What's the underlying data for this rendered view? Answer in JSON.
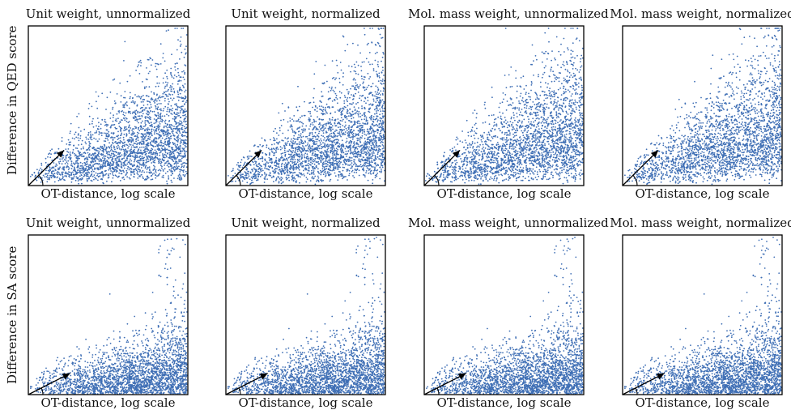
{
  "figure": {
    "row_labels": [
      "Difference in QED score",
      "Difference in SA score"
    ],
    "xlabel": "OT-distance, log scale",
    "col_titles": [
      "Unit weight, unnormalized",
      "Unit weight, normalized",
      "Mol. mass weight, unnormalized",
      "Mol. mass weight, normalized"
    ],
    "point_color": "#3f6fb5"
  },
  "chart_data": [
    {
      "type": "scatter",
      "row": 0,
      "col": 0,
      "title": "Unit weight, unnormalized",
      "xlabel": "OT-distance, log scale",
      "ylabel": "Difference in QED score",
      "grid": false,
      "arrow_annotation": true,
      "point_count_approx": 4000,
      "distribution": "spreads upward with increasing x; dense at high x",
      "x": [
        0.55,
        0.6,
        0.65,
        0.7,
        0.75,
        0.8,
        0.85,
        0.9,
        0.95,
        0.98,
        0.45,
        0.35,
        0.25,
        0.15,
        0.92
      ],
      "y": [
        0.1,
        0.45,
        0.3,
        0.55,
        0.2,
        0.6,
        0.4,
        0.7,
        0.35,
        0.75,
        0.35,
        0.25,
        0.2,
        0.1,
        0.8
      ]
    },
    {
      "type": "scatter",
      "row": 0,
      "col": 1,
      "title": "Unit weight, normalized",
      "xlabel": "OT-distance, log scale",
      "grid": false,
      "arrow_annotation": true,
      "point_count_approx": 4000,
      "distribution": "broad spread, dense at high x",
      "x": [
        0.5,
        0.6,
        0.7,
        0.8,
        0.9,
        0.95,
        0.4,
        0.3,
        0.2,
        0.1,
        0.98
      ],
      "y": [
        0.2,
        0.5,
        0.3,
        0.6,
        0.4,
        0.8,
        0.45,
        0.35,
        0.3,
        0.2,
        0.95
      ]
    },
    {
      "type": "scatter",
      "row": 0,
      "col": 2,
      "title": "Mol. mass weight, unnormalized",
      "xlabel": "OT-distance, log scale",
      "grid": false,
      "arrow_annotation": true,
      "point_count_approx": 4000,
      "distribution": "dense mid-right region",
      "x": [
        0.55,
        0.65,
        0.75,
        0.85,
        0.9,
        0.95,
        0.45,
        0.35,
        0.25,
        0.97
      ],
      "y": [
        0.2,
        0.45,
        0.35,
        0.55,
        0.7,
        0.9,
        0.3,
        0.25,
        0.15,
        0.95
      ]
    },
    {
      "type": "scatter",
      "row": 0,
      "col": 3,
      "title": "Mol. mass weight, normalized",
      "xlabel": "OT-distance, log scale",
      "grid": false,
      "arrow_annotation": true,
      "point_count_approx": 4000,
      "distribution": "dense toward right, reaching top",
      "x": [
        0.6,
        0.7,
        0.8,
        0.85,
        0.9,
        0.95,
        0.5,
        0.35,
        0.2,
        0.97
      ],
      "y": [
        0.2,
        0.5,
        0.35,
        0.7,
        0.85,
        0.95,
        0.3,
        0.25,
        0.15,
        0.98
      ]
    },
    {
      "type": "scatter",
      "row": 1,
      "col": 0,
      "title": "Unit weight, unnormalized",
      "xlabel": "OT-distance, log scale",
      "ylabel": "Difference in SA score",
      "grid": false,
      "arrow_annotation": true,
      "point_count_approx": 4000,
      "distribution": "concentrated near bottom; sparse outliers upper right",
      "x": [
        0.5,
        0.6,
        0.7,
        0.8,
        0.9,
        0.95,
        0.85,
        0.9,
        0.3,
        0.2
      ],
      "y": [
        0.05,
        0.1,
        0.15,
        0.12,
        0.2,
        0.3,
        0.8,
        0.9,
        0.08,
        0.05
      ]
    },
    {
      "type": "scatter",
      "row": 1,
      "col": 1,
      "title": "Unit weight, normalized",
      "xlabel": "OT-distance, log scale",
      "grid": false,
      "arrow_annotation": true,
      "point_count_approx": 4000,
      "distribution": "concentrated near bottom; outliers upper right",
      "x": [
        0.5,
        0.6,
        0.7,
        0.8,
        0.9,
        0.95,
        0.8,
        0.85,
        0.3,
        0.2
      ],
      "y": [
        0.05,
        0.1,
        0.12,
        0.15,
        0.2,
        0.35,
        0.85,
        0.9,
        0.06,
        0.05
      ]
    },
    {
      "type": "scatter",
      "row": 1,
      "col": 2,
      "title": "Mol. mass weight, unnormalized",
      "xlabel": "OT-distance, log scale",
      "grid": false,
      "arrow_annotation": true,
      "point_count_approx": 4000,
      "distribution": "bottom-heavy, tail rising at right edge",
      "x": [
        0.5,
        0.6,
        0.7,
        0.8,
        0.9,
        0.95,
        0.9,
        0.85,
        0.3,
        0.2
      ],
      "y": [
        0.05,
        0.08,
        0.1,
        0.15,
        0.2,
        0.4,
        0.9,
        0.95,
        0.06,
        0.04
      ]
    },
    {
      "type": "scatter",
      "row": 1,
      "col": 3,
      "title": "Mol. mass weight, normalized",
      "xlabel": "OT-distance, log scale",
      "grid": false,
      "arrow_annotation": true,
      "point_count_approx": 4000,
      "distribution": "bottom-heavy with rising right tail",
      "x": [
        0.5,
        0.6,
        0.7,
        0.8,
        0.9,
        0.95,
        0.85,
        0.9,
        0.3,
        0.2
      ],
      "y": [
        0.05,
        0.08,
        0.12,
        0.18,
        0.25,
        0.45,
        0.85,
        0.95,
        0.06,
        0.04
      ]
    }
  ]
}
